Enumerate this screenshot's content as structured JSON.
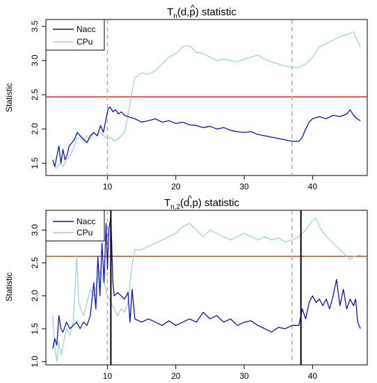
{
  "colors": {
    "nacc": "#0a12c8",
    "cpu": "#9fd2e6",
    "threshold1": "#ff0000",
    "threshold2": "#b45a2c",
    "dashed": "#a8a8a8",
    "solid_break": "#000000"
  },
  "chart_data": [
    {
      "type": "line",
      "title": "T̂n(d,p) statistic",
      "title_main": "T",
      "title_sub": "n",
      "title_tail": "(d,p) statistic",
      "ylabel": "Statistic",
      "xlim": [
        1,
        48
      ],
      "ylim": [
        1.32,
        3.6
      ],
      "x_ticks": [
        "10",
        "20",
        "30",
        "40"
      ],
      "y_ticks": [
        "1.5",
        "2.0",
        "2.5",
        "3.0",
        "3.5"
      ],
      "legend": {
        "position": "top-left",
        "entries": [
          "Nacc",
          "CPu"
        ]
      },
      "threshold": 2.47,
      "dashed_vlines": [
        10.0,
        37.0
      ],
      "series": [
        {
          "name": "Nacc",
          "color": "#0a12c8",
          "points": [
            [
              2.0,
              1.55
            ],
            [
              2.3,
              1.45
            ],
            [
              2.6,
              1.6
            ],
            [
              2.9,
              1.75
            ],
            [
              3.2,
              1.5
            ],
            [
              3.5,
              1.7
            ],
            [
              3.8,
              1.55
            ],
            [
              4.1,
              1.62
            ],
            [
              4.4,
              1.75
            ],
            [
              4.8,
              1.8
            ],
            [
              5.2,
              1.85
            ],
            [
              5.6,
              1.95
            ],
            [
              6.0,
              1.9
            ],
            [
              6.5,
              1.85
            ],
            [
              7.0,
              1.8
            ],
            [
              7.5,
              1.9
            ],
            [
              8.0,
              1.95
            ],
            [
              8.5,
              1.9
            ],
            [
              9.0,
              2.05
            ],
            [
              9.4,
              1.95
            ],
            [
              9.8,
              2.15
            ],
            [
              10.1,
              2.3
            ],
            [
              10.4,
              2.32
            ],
            [
              10.8,
              2.25
            ],
            [
              11.2,
              2.28
            ],
            [
              11.6,
              2.22
            ],
            [
              12.0,
              2.25
            ],
            [
              12.5,
              2.2
            ],
            [
              13.0,
              2.18
            ],
            [
              14.0,
              2.15
            ],
            [
              15.0,
              2.1
            ],
            [
              16.0,
              2.12
            ],
            [
              17.0,
              2.15
            ],
            [
              18.0,
              2.1
            ],
            [
              19.0,
              2.12
            ],
            [
              20.0,
              2.08
            ],
            [
              21.0,
              2.1
            ],
            [
              22.0,
              2.06
            ],
            [
              23.0,
              2.05
            ],
            [
              24.0,
              2.02
            ],
            [
              25.0,
              2.04
            ],
            [
              26.0,
              2.0
            ],
            [
              27.0,
              2.02
            ],
            [
              28.0,
              1.98
            ],
            [
              29.0,
              1.96
            ],
            [
              30.0,
              1.95
            ],
            [
              31.0,
              1.96
            ],
            [
              32.0,
              1.92
            ],
            [
              33.0,
              1.9
            ],
            [
              34.0,
              1.88
            ],
            [
              35.0,
              1.86
            ],
            [
              36.0,
              1.84
            ],
            [
              37.0,
              1.82
            ],
            [
              38.0,
              1.82
            ],
            [
              38.5,
              1.88
            ],
            [
              39.0,
              2.0
            ],
            [
              39.5,
              2.1
            ],
            [
              40.0,
              2.15
            ],
            [
              41.0,
              2.18
            ],
            [
              42.0,
              2.15
            ],
            [
              43.0,
              2.2
            ],
            [
              44.0,
              2.18
            ],
            [
              45.0,
              2.22
            ],
            [
              45.5,
              2.28
            ],
            [
              46.0,
              2.2
            ],
            [
              46.5,
              2.15
            ],
            [
              47.0,
              2.12
            ]
          ]
        },
        {
          "name": "CPu",
          "color": "#9fd2e6",
          "points": [
            [
              2.0,
              1.5
            ],
            [
              2.5,
              1.42
            ],
            [
              3.0,
              1.5
            ],
            [
              3.5,
              1.45
            ],
            [
              4.0,
              1.55
            ],
            [
              4.5,
              1.6
            ],
            [
              5.0,
              1.7
            ],
            [
              5.5,
              1.85
            ],
            [
              6.0,
              1.88
            ],
            [
              6.5,
              1.82
            ],
            [
              7.0,
              1.9
            ],
            [
              7.5,
              1.85
            ],
            [
              8.0,
              1.95
            ],
            [
              8.5,
              1.9
            ],
            [
              9.0,
              1.95
            ],
            [
              9.5,
              1.9
            ],
            [
              10.0,
              1.85
            ],
            [
              10.5,
              1.88
            ],
            [
              11.0,
              1.82
            ],
            [
              11.5,
              1.85
            ],
            [
              12.0,
              1.9
            ],
            [
              12.5,
              1.95
            ],
            [
              13.0,
              2.2
            ],
            [
              13.5,
              2.5
            ],
            [
              14.0,
              2.75
            ],
            [
              15.0,
              2.82
            ],
            [
              16.0,
              2.8
            ],
            [
              17.0,
              2.85
            ],
            [
              18.0,
              2.95
            ],
            [
              19.0,
              3.05
            ],
            [
              20.0,
              3.1
            ],
            [
              21.0,
              3.2
            ],
            [
              22.0,
              3.22
            ],
            [
              23.0,
              3.12
            ],
            [
              24.0,
              3.1
            ],
            [
              25.0,
              3.05
            ],
            [
              26.0,
              3.0
            ],
            [
              27.0,
              3.02
            ],
            [
              28.0,
              3.0
            ],
            [
              29.0,
              2.98
            ],
            [
              30.0,
              3.02
            ],
            [
              31.0,
              3.05
            ],
            [
              32.0,
              3.08
            ],
            [
              33.0,
              3.02
            ],
            [
              34.0,
              2.98
            ],
            [
              35.0,
              2.95
            ],
            [
              36.0,
              2.92
            ],
            [
              37.0,
              2.9
            ],
            [
              38.0,
              2.9
            ],
            [
              39.0,
              2.95
            ],
            [
              40.0,
              3.05
            ],
            [
              41.0,
              3.2
            ],
            [
              42.0,
              3.25
            ],
            [
              43.0,
              3.3
            ],
            [
              44.0,
              3.35
            ],
            [
              45.0,
              3.38
            ],
            [
              46.0,
              3.42
            ],
            [
              46.5,
              3.3
            ],
            [
              47.0,
              3.2
            ]
          ]
        }
      ]
    },
    {
      "type": "line",
      "title": "T̂n,2(d,p) statistic",
      "title_main": "T",
      "title_sub": "n,2",
      "title_tail": "(d,p) statistic",
      "ylabel": "Statistic",
      "xlim": [
        1,
        48
      ],
      "ylim": [
        0.95,
        3.3
      ],
      "x_ticks": [
        "10",
        "20",
        "30",
        "40"
      ],
      "y_ticks": [
        "1.0",
        "1.5",
        "2.0",
        "2.5",
        "3.0"
      ],
      "legend": {
        "position": "top-left",
        "entries": [
          "Nacc",
          "CPu"
        ]
      },
      "threshold": 2.6,
      "dashed_vlines": [
        10.0,
        37.0
      ],
      "solid_vlines": [
        10.5,
        38.3
      ],
      "series": [
        {
          "name": "Nacc",
          "color": "#0a12c8",
          "points": [
            [
              2.0,
              1.2
            ],
            [
              2.3,
              1.35
            ],
            [
              2.6,
              1.25
            ],
            [
              2.9,
              1.7
            ],
            [
              3.2,
              1.5
            ],
            [
              3.5,
              1.45
            ],
            [
              4.0,
              1.6
            ],
            [
              4.5,
              1.5
            ],
            [
              5.0,
              1.55
            ],
            [
              5.5,
              1.6
            ],
            [
              6.0,
              1.5
            ],
            [
              6.5,
              1.6
            ],
            [
              7.0,
              1.55
            ],
            [
              7.5,
              1.7
            ],
            [
              8.0,
              2.2
            ],
            [
              8.3,
              1.8
            ],
            [
              8.6,
              2.6
            ],
            [
              8.9,
              2.0
            ],
            [
              9.2,
              2.8
            ],
            [
              9.5,
              2.2
            ],
            [
              9.8,
              3.1
            ],
            [
              10.0,
              2.4
            ],
            [
              10.2,
              3.0
            ],
            [
              10.5,
              3.2
            ],
            [
              10.8,
              2.2
            ],
            [
              11.0,
              2.0
            ],
            [
              11.5,
              2.05
            ],
            [
              12.0,
              2.0
            ],
            [
              12.5,
              1.95
            ],
            [
              13.0,
              2.05
            ],
            [
              13.3,
              1.6
            ],
            [
              13.6,
              2.1
            ],
            [
              14.0,
              1.65
            ],
            [
              15.0,
              1.6
            ],
            [
              16.0,
              1.65
            ],
            [
              17.0,
              1.6
            ],
            [
              18.0,
              1.55
            ],
            [
              19.0,
              1.62
            ],
            [
              20.0,
              1.55
            ],
            [
              21.0,
              1.6
            ],
            [
              22.0,
              1.65
            ],
            [
              23.0,
              1.6
            ],
            [
              24.0,
              1.75
            ],
            [
              25.0,
              1.65
            ],
            [
              26.0,
              1.7
            ],
            [
              27.0,
              1.6
            ],
            [
              28.0,
              1.65
            ],
            [
              29.0,
              1.55
            ],
            [
              30.0,
              1.6
            ],
            [
              31.0,
              1.62
            ],
            [
              32.0,
              1.55
            ],
            [
              33.0,
              1.5
            ],
            [
              34.0,
              1.45
            ],
            [
              35.0,
              1.52
            ],
            [
              36.0,
              1.5
            ],
            [
              37.0,
              1.55
            ],
            [
              38.0,
              1.55
            ],
            [
              38.5,
              1.8
            ],
            [
              39.0,
              1.65
            ],
            [
              39.5,
              1.9
            ],
            [
              40.0,
              2.0
            ],
            [
              40.5,
              1.9
            ],
            [
              41.0,
              1.95
            ],
            [
              41.5,
              1.85
            ],
            [
              42.0,
              1.95
            ],
            [
              42.5,
              1.8
            ],
            [
              43.0,
              2.0
            ],
            [
              43.5,
              2.25
            ],
            [
              44.0,
              1.85
            ],
            [
              44.5,
              2.1
            ],
            [
              45.0,
              1.8
            ],
            [
              45.5,
              1.95
            ],
            [
              46.0,
              1.85
            ],
            [
              46.3,
              1.95
            ],
            [
              46.6,
              1.6
            ],
            [
              47.0,
              1.5
            ]
          ]
        },
        {
          "name": "CPu",
          "color": "#9fd2e6",
          "points": [
            [
              2.0,
              1.7
            ],
            [
              2.3,
              1.2
            ],
            [
              2.6,
              1.0
            ],
            [
              2.9,
              1.3
            ],
            [
              3.2,
              1.1
            ],
            [
              3.5,
              1.25
            ],
            [
              4.0,
              1.5
            ],
            [
              4.5,
              1.4
            ],
            [
              5.0,
              1.6
            ],
            [
              5.5,
              2.6
            ],
            [
              5.8,
              1.9
            ],
            [
              6.1,
              1.8
            ],
            [
              6.5,
              1.7
            ],
            [
              7.0,
              1.9
            ],
            [
              7.5,
              2.1
            ],
            [
              8.0,
              2.0
            ],
            [
              8.5,
              2.2
            ],
            [
              9.0,
              2.4
            ],
            [
              9.5,
              2.2
            ],
            [
              10.0,
              2.0
            ],
            [
              10.5,
              1.9
            ],
            [
              11.0,
              1.8
            ],
            [
              11.5,
              1.7
            ],
            [
              12.0,
              1.8
            ],
            [
              12.5,
              1.75
            ],
            [
              13.0,
              1.9
            ],
            [
              13.5,
              2.4
            ],
            [
              14.0,
              2.7
            ],
            [
              15.0,
              2.7
            ],
            [
              16.0,
              2.75
            ],
            [
              17.0,
              2.8
            ],
            [
              18.0,
              2.85
            ],
            [
              19.0,
              2.9
            ],
            [
              20.0,
              2.95
            ],
            [
              21.0,
              3.05
            ],
            [
              22.0,
              3.1
            ],
            [
              23.0,
              3.0
            ],
            [
              24.0,
              2.9
            ],
            [
              25.0,
              3.0
            ],
            [
              26.0,
              2.95
            ],
            [
              27.0,
              2.9
            ],
            [
              28.0,
              2.85
            ],
            [
              29.0,
              2.9
            ],
            [
              30.0,
              2.95
            ],
            [
              31.0,
              2.9
            ],
            [
              32.0,
              2.85
            ],
            [
              33.0,
              2.9
            ],
            [
              34.0,
              2.85
            ],
            [
              35.0,
              2.88
            ],
            [
              36.0,
              2.82
            ],
            [
              37.0,
              2.85
            ],
            [
              38.0,
              2.9
            ],
            [
              39.0,
              3.0
            ],
            [
              40.0,
              3.15
            ],
            [
              40.5,
              3.18
            ],
            [
              41.0,
              3.05
            ],
            [
              42.0,
              2.9
            ],
            [
              43.0,
              2.8
            ],
            [
              44.0,
              2.7
            ],
            [
              45.0,
              2.6
            ],
            [
              45.5,
              2.55
            ],
            [
              46.0,
              2.6
            ],
            [
              47.0,
              2.62
            ]
          ]
        }
      ]
    }
  ]
}
